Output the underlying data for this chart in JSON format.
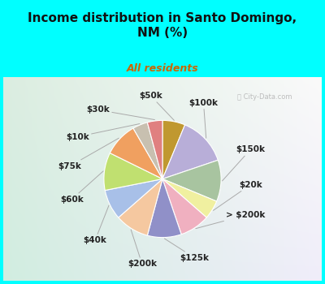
{
  "title": "Income distribution in Santo Domingo,\nNM (%)",
  "subtitle": "All residents",
  "background_color": "#00FFFF",
  "watermark": "City-Data.com",
  "labels": [
    "$100k",
    "$150k",
    "$20k",
    "> $200k",
    "$125k",
    "$200k",
    "$40k",
    "$60k",
    "$75k",
    "$10k",
    "$30k",
    "$50k"
  ],
  "values": [
    13,
    11,
    5,
    8,
    9,
    9,
    8,
    10,
    9,
    4,
    4,
    6
  ],
  "colors": [
    "#b8aed8",
    "#a8c4a0",
    "#f0f0a0",
    "#f0b0c0",
    "#9090c8",
    "#f5c8a0",
    "#a8c0e8",
    "#c0e070",
    "#f0a060",
    "#c8c0b0",
    "#e08080",
    "#c09830"
  ],
  "label_color": "#222222",
  "title_color": "#111111",
  "subtitle_color": "#cc6600",
  "title_fontsize": 11,
  "subtitle_fontsize": 9,
  "label_fontsize": 7.5,
  "chart_facecolor": "#d8efe8"
}
